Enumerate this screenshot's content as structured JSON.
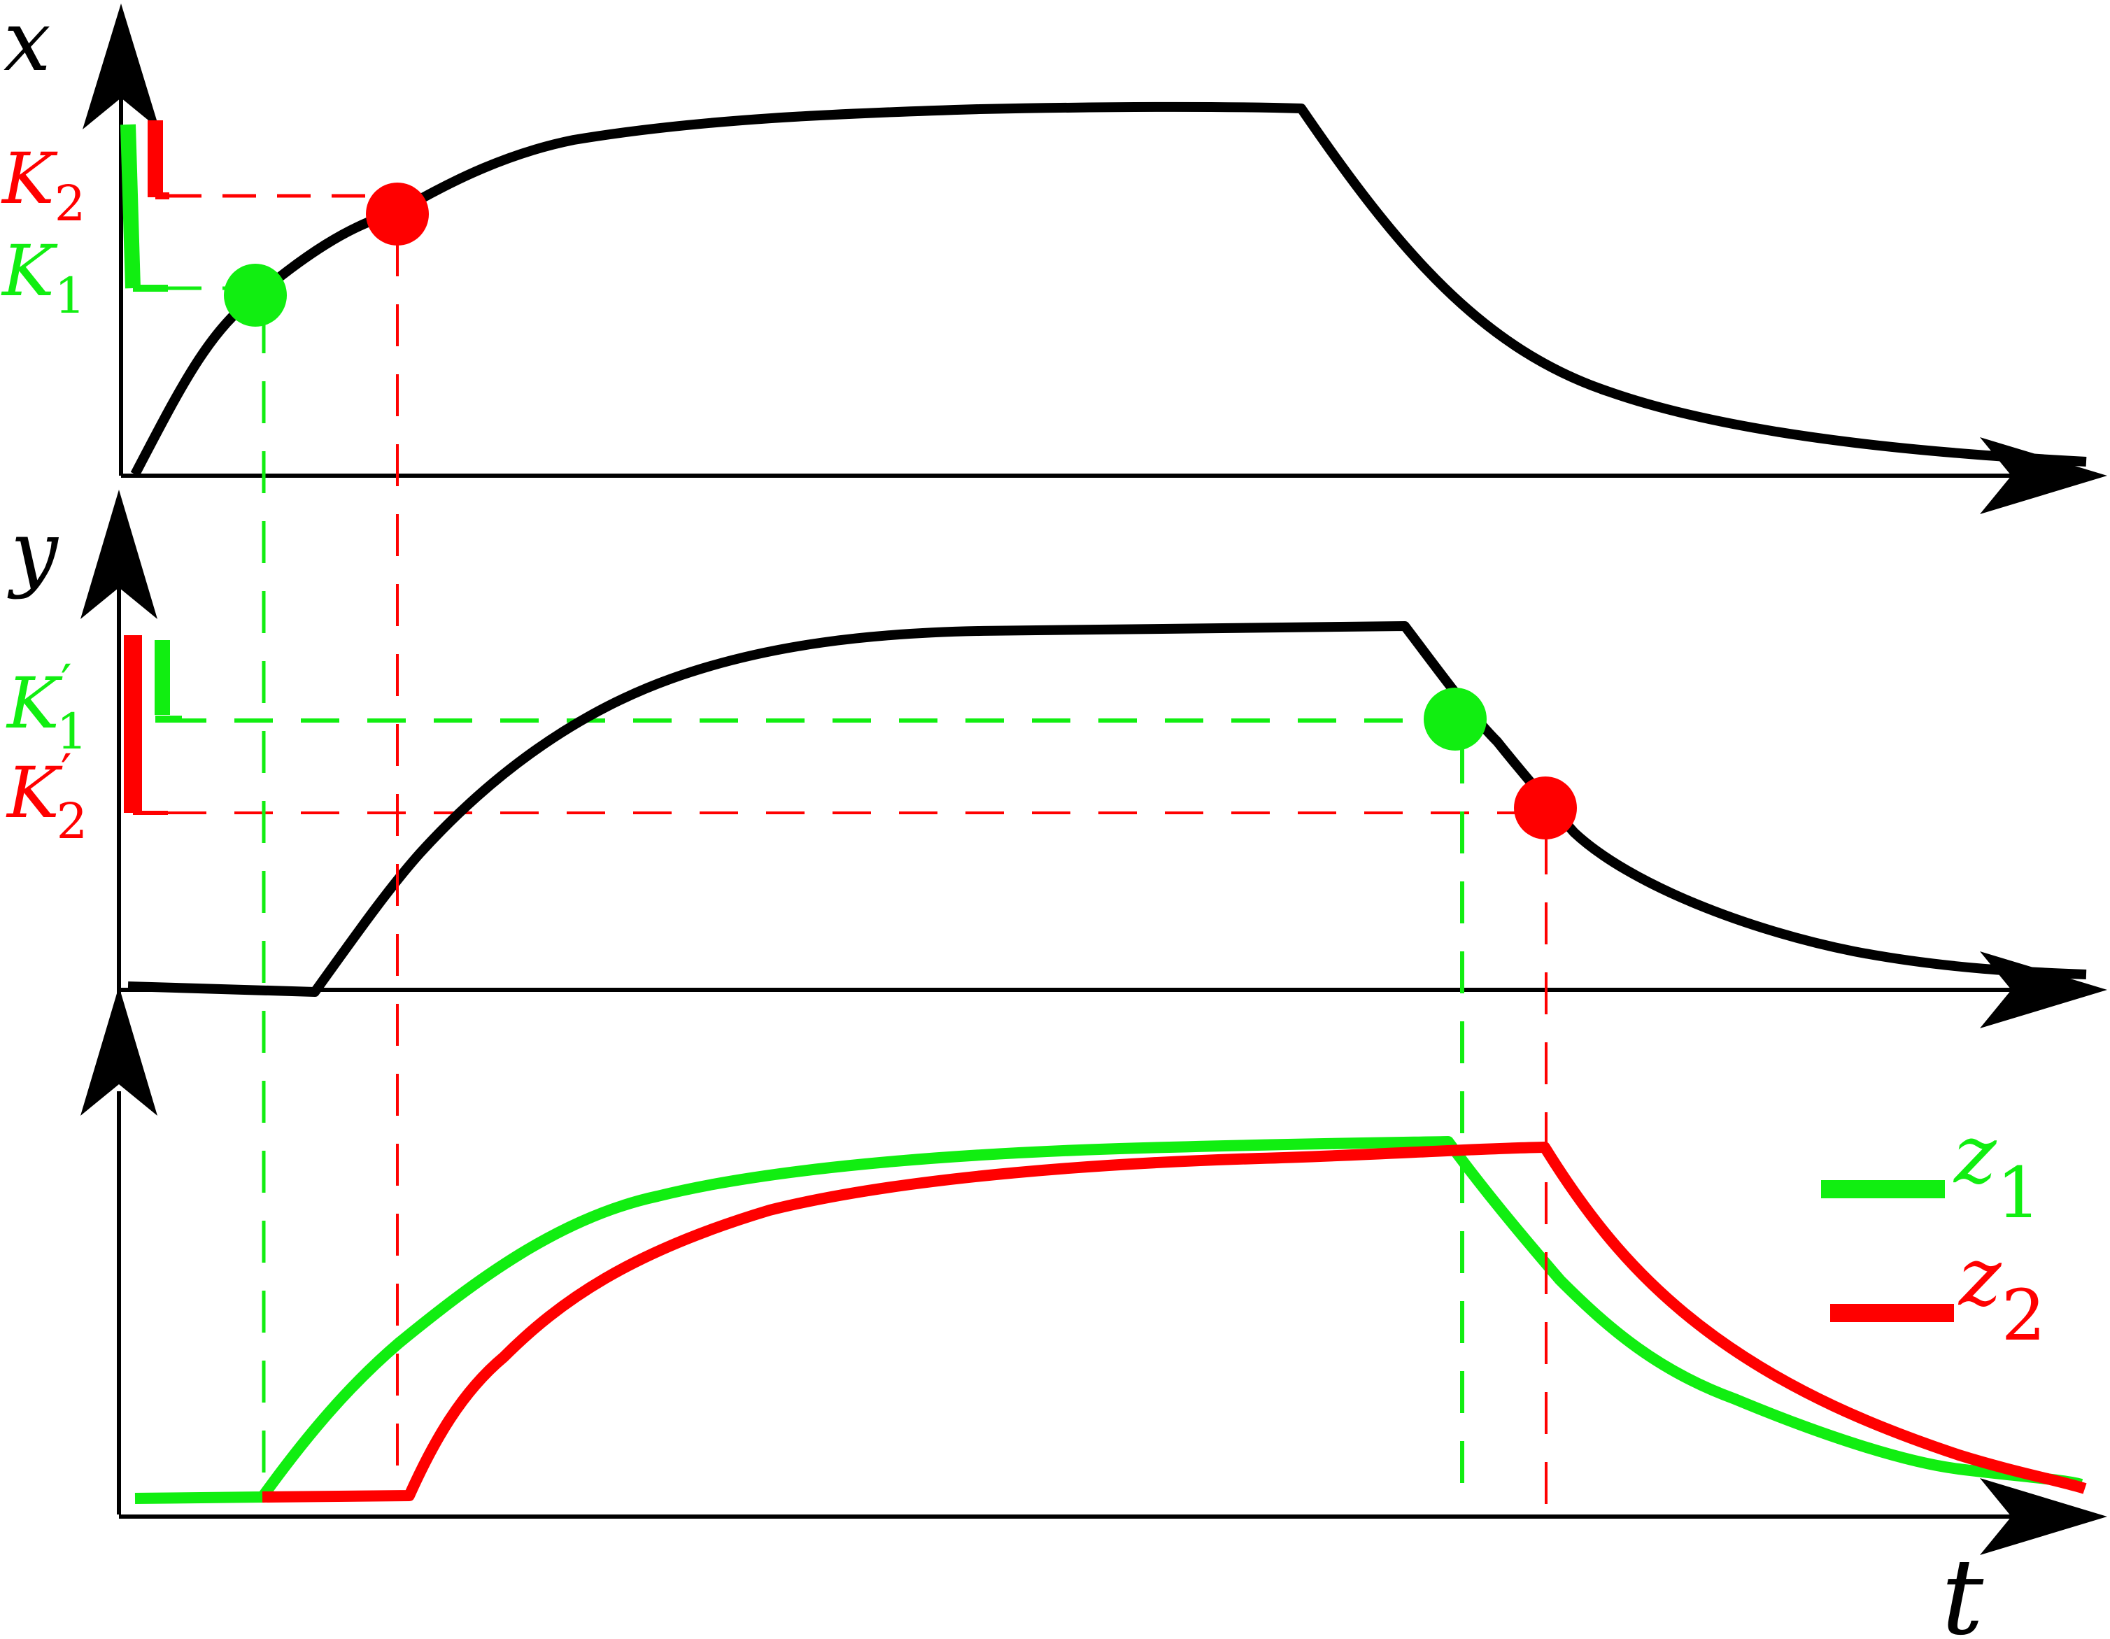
{
  "colors": {
    "black": "#000000",
    "green": "#11ee11",
    "red": "#ff0000"
  },
  "axes": {
    "top_label": "x",
    "middle_label": "y",
    "bottom_time_label": "t"
  },
  "thresholds": {
    "k1": {
      "base": "K",
      "sub": "1"
    },
    "k2": {
      "base": "K",
      "sub": "2"
    },
    "k1_prime": {
      "base": "K",
      "prime": "′",
      "sub": "1"
    },
    "k2_prime": {
      "base": "K",
      "prime": "′",
      "sub": "2"
    }
  },
  "legend": {
    "z1": {
      "base": "z",
      "sub": "1"
    },
    "z2": {
      "base": "z",
      "sub": "2"
    }
  }
}
